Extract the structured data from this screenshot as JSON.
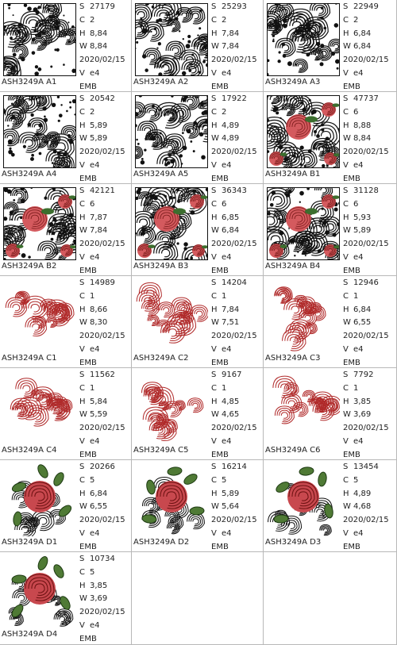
{
  "labels": {
    "s": "S",
    "c": "C",
    "h": "H",
    "w": "W",
    "v": "V"
  },
  "items": [
    {
      "name": "ASH3249A A1",
      "s": "27179",
      "c": "2",
      "h": "8,84",
      "w": "8,84",
      "date": "2020/02/15",
      "v": "e4",
      "format": "EMB"
    },
    {
      "name": "ASH3249A A2",
      "s": "25293",
      "c": "2",
      "h": "7,84",
      "w": "7,84",
      "date": "2020/02/15",
      "v": "e4",
      "format": "EMB"
    },
    {
      "name": "ASH3249A A3",
      "s": "22949",
      "c": "2",
      "h": "6,84",
      "w": "6,84",
      "date": "2020/02/15",
      "v": "e4",
      "format": "EMB"
    },
    {
      "name": "ASH3249A A4",
      "s": "20542",
      "c": "2",
      "h": "5,89",
      "w": "5,89",
      "date": "2020/02/15",
      "v": "e4",
      "format": "EMB"
    },
    {
      "name": "ASH3249A A5",
      "s": "17922",
      "c": "2",
      "h": "4,89",
      "w": "4,89",
      "date": "2020/02/15",
      "v": "e4",
      "format": "EMB"
    },
    {
      "name": "ASH3249A B1",
      "s": "47737",
      "c": "6",
      "h": "8,88",
      "w": "8,84",
      "date": "2020/02/15",
      "v": "e4",
      "format": "EMB"
    },
    {
      "name": "ASH3249A B2",
      "s": "42121",
      "c": "6",
      "h": "7,87",
      "w": "7,84",
      "date": "2020/02/15",
      "v": "e4",
      "format": "EMB"
    },
    {
      "name": "ASH3249A B3",
      "s": "36343",
      "c": "6",
      "h": "6,85",
      "w": "6,84",
      "date": "2020/02/15",
      "v": "e4",
      "format": "EMB"
    },
    {
      "name": "ASH3249A B4",
      "s": "31128",
      "c": "6",
      "h": "5,93",
      "w": "5,89",
      "date": "2020/02/15",
      "v": "e4",
      "format": "EMB"
    },
    {
      "name": "ASH3249A C1",
      "s": "14989",
      "c": "1",
      "h": "8,66",
      "w": "8,30",
      "date": "2020/02/15",
      "v": "e4",
      "format": "EMB"
    },
    {
      "name": "ASH3249A C2",
      "s": "14204",
      "c": "1",
      "h": "7,84",
      "w": "7,51",
      "date": "2020/02/15",
      "v": "e4",
      "format": "EMB"
    },
    {
      "name": "ASH3249A C3",
      "s": "12946",
      "c": "1",
      "h": "6,84",
      "w": "6,55",
      "date": "2020/02/15",
      "v": "e4",
      "format": "EMB"
    },
    {
      "name": "ASH3249A C4",
      "s": "11562",
      "c": "1",
      "h": "5,84",
      "w": "5,59",
      "date": "2020/02/15",
      "v": "e4",
      "format": "EMB"
    },
    {
      "name": "ASH3249A C5",
      "s": "9167",
      "c": "1",
      "h": "4,85",
      "w": "4,65",
      "date": "2020/02/15",
      "v": "e4",
      "format": "EMB"
    },
    {
      "name": "ASH3249A C6",
      "s": "7792",
      "c": "1",
      "h": "3,85",
      "w": "3,69",
      "date": "2020/02/15",
      "v": "e4",
      "format": "EMB"
    },
    {
      "name": "ASH3249A D1",
      "s": "20266",
      "c": "5",
      "h": "6,84",
      "w": "6,55",
      "date": "2020/02/15",
      "v": "e4",
      "format": "EMB"
    },
    {
      "name": "ASH3249A D2",
      "s": "16214",
      "c": "5",
      "h": "5,89",
      "w": "5,64",
      "date": "2020/02/15",
      "v": "e4",
      "format": "EMB"
    },
    {
      "name": "ASH3249A D3",
      "s": "13454",
      "c": "5",
      "h": "4,89",
      "w": "4,68",
      "date": "2020/02/15",
      "v": "e4",
      "format": "EMB"
    },
    {
      "name": "ASH3249A D4",
      "s": "10734",
      "c": "5",
      "h": "3,85",
      "w": "3,69",
      "date": "2020/02/15",
      "v": "e4",
      "format": "EMB"
    }
  ]
}
